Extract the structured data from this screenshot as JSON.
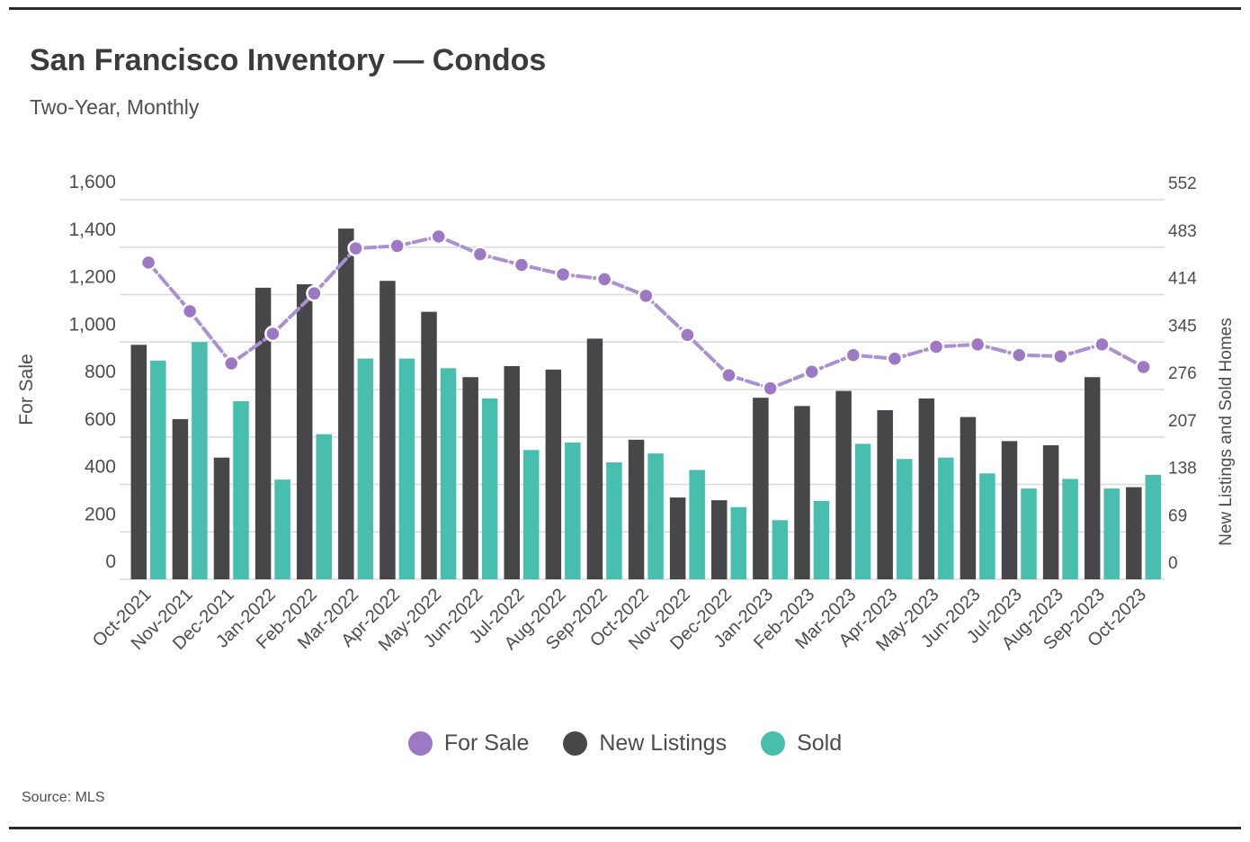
{
  "page": {
    "title": "San Francisco Inventory — Condos",
    "subtitle": "Two-Year, Monthly",
    "source": "Source: MLS"
  },
  "colors": {
    "for_sale_point": "#9d78c4",
    "for_sale_line": "#ab90d2",
    "new_listings": "#474749",
    "sold": "#47beae",
    "grid": "#dadada",
    "text": "#4c4c4c",
    "rule": "#2b2b2b"
  },
  "chart_data": {
    "type": "combo-bar-line",
    "title": "San Francisco Inventory — Condos",
    "subtitle": "Two-Year, Monthly",
    "categories": [
      "Oct-2021",
      "Nov-2021",
      "Dec-2021",
      "Jan-2022",
      "Feb-2022",
      "Mar-2022",
      "Apr-2022",
      "May-2022",
      "Jun-2022",
      "Jul-2022",
      "Aug-2022",
      "Sep-2022",
      "Oct-2022",
      "Nov-2022",
      "Dec-2022",
      "Jan-2023",
      "Feb-2023",
      "Mar-2023",
      "Apr-2023",
      "May-2023",
      "Jun-2023",
      "Jul-2023",
      "Aug-2023",
      "Sep-2023",
      "Oct-2023"
    ],
    "left_axis": {
      "label": "For Sale",
      "min": 0,
      "max": 1600,
      "tick_step": 200,
      "tick_labels": [
        "0",
        "200",
        "400",
        "600",
        "800",
        "1,000",
        "1,200",
        "1,400",
        "1,600"
      ]
    },
    "right_axis": {
      "label": "New Listings and Sold Homes",
      "min": 0,
      "max": 552,
      "tick_step": 69,
      "tick_labels": [
        "0",
        "69",
        "138",
        "207",
        "276",
        "345",
        "414",
        "483",
        "552"
      ]
    },
    "series": [
      {
        "name": "For Sale",
        "type": "line",
        "axis": "left",
        "color": "#9d78c4",
        "values": [
          1335,
          1130,
          910,
          1035,
          1205,
          1395,
          1405,
          1445,
          1370,
          1325,
          1285,
          1265,
          1195,
          1030,
          860,
          805,
          875,
          945,
          930,
          980,
          990,
          945,
          940,
          990,
          895
        ]
      },
      {
        "name": "New Listings",
        "type": "bar",
        "axis": "right",
        "color": "#474749",
        "values": [
          341,
          233,
          177,
          424,
          429,
          510,
          434,
          389,
          294,
          310,
          305,
          350,
          203,
          119,
          115,
          264,
          252,
          274,
          246,
          263,
          236,
          201,
          195,
          294,
          134
        ]
      },
      {
        "name": "Sold",
        "type": "bar",
        "axis": "right",
        "color": "#47beae",
        "values": [
          318,
          345,
          259,
          145,
          211,
          321,
          321,
          307,
          263,
          188,
          199,
          170,
          183,
          159,
          105,
          86,
          114,
          197,
          175,
          177,
          154,
          132,
          146,
          132,
          152
        ]
      }
    ],
    "legend_position": "bottom",
    "grid": "horizontal",
    "source": "Source: MLS"
  }
}
